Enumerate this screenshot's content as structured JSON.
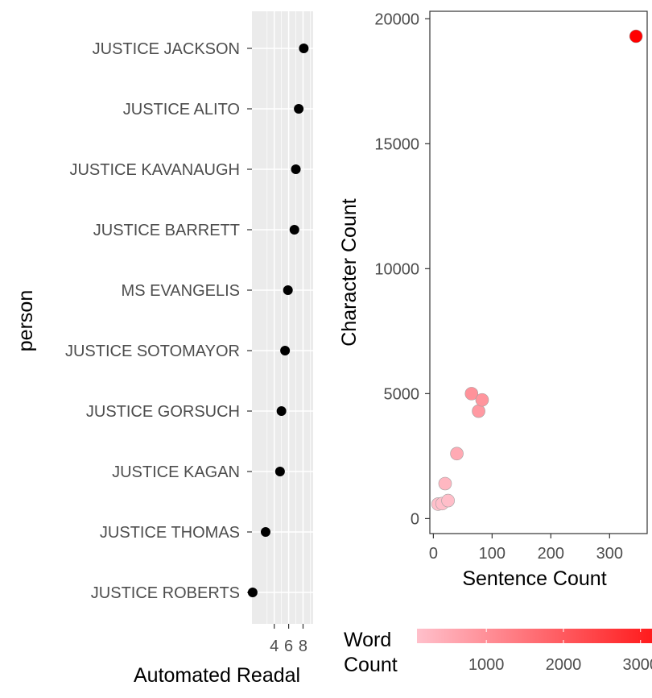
{
  "chart_data": [
    {
      "type": "scatter",
      "xlabel": "Automated Readal",
      "ylabel": "person",
      "x_ticks": [
        "4",
        "6",
        "8"
      ],
      "categories": [
        "JUSTICE JACKSON",
        "JUSTICE ALITO",
        "JUSTICE KAVANAUGH",
        "JUSTICE BARRETT",
        "MS EVANGELIS",
        "JUSTICE SOTOMAYOR",
        "JUSTICE GORSUCH",
        "JUSTICE KAGAN",
        "JUSTICE THOMAS",
        "JUSTICE ROBERTS"
      ],
      "values": [
        8.1,
        7.4,
        7.0,
        6.8,
        5.9,
        5.5,
        5.0,
        4.8,
        2.8,
        1.0
      ],
      "xlim": [
        0.9,
        9.4
      ],
      "grid": true,
      "point_color": "#000000"
    },
    {
      "type": "scatter",
      "xlabel": "Sentence Count",
      "ylabel": "Character Count",
      "x_ticks": [
        "0",
        "100",
        "200",
        "300"
      ],
      "y_ticks": [
        "0",
        "5000",
        "10000",
        "15000",
        "20000"
      ],
      "xlim": [
        -6,
        364
      ],
      "ylim": [
        -600,
        20300
      ],
      "grid": false,
      "points": [
        {
          "x": 8,
          "y": 580,
          "word_count": 110
        },
        {
          "x": 15,
          "y": 600,
          "word_count": 120
        },
        {
          "x": 25,
          "y": 720,
          "word_count": 140
        },
        {
          "x": 20,
          "y": 1400,
          "word_count": 270
        },
        {
          "x": 40,
          "y": 2600,
          "word_count": 500
        },
        {
          "x": 65,
          "y": 5000,
          "word_count": 950
        },
        {
          "x": 77,
          "y": 4300,
          "word_count": 820
        },
        {
          "x": 83,
          "y": 4750,
          "word_count": 900
        },
        {
          "x": 345,
          "y": 19300,
          "word_count": 3650
        }
      ],
      "legend": {
        "title_lines": [
          "Word",
          "Count"
        ],
        "ticks": [
          "1000",
          "2000",
          "3000"
        ],
        "tick_values": [
          1000,
          2000,
          3000
        ],
        "range": [
          100,
          3650
        ],
        "low_color": "#FFC0CB",
        "high_color": "#FF0000",
        "placement": "bottom"
      }
    }
  ]
}
